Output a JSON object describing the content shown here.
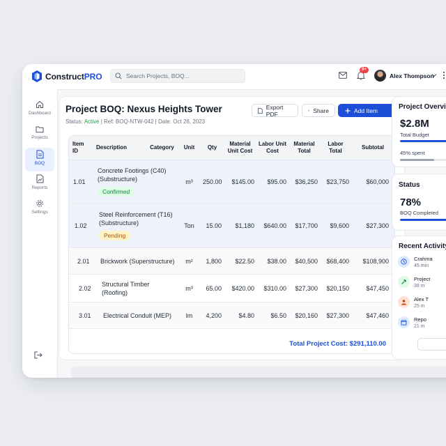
{
  "brand": {
    "name_main": "Construct",
    "name_accent": "PRO"
  },
  "search": {
    "placeholder": "Search Projects, BOQ..."
  },
  "header": {
    "notification_count": "9+",
    "user_name": "Alex Thompson"
  },
  "sidebar": {
    "items": [
      {
        "label": "Dashboard",
        "icon": "home-icon",
        "active": false
      },
      {
        "label": "Projects",
        "icon": "folder-icon",
        "active": false
      },
      {
        "label": "BOQ",
        "icon": "document-icon",
        "active": true
      },
      {
        "label": "Reports",
        "icon": "chart-file-icon",
        "active": false
      },
      {
        "label": "Settings",
        "icon": "gear-icon",
        "active": false
      }
    ]
  },
  "page": {
    "title": "Project BOQ: Nexus Heights Tower",
    "status_label": "Status:",
    "status_value": "Active",
    "ref": "| Ref: BOQ-NTW-042 | Date: Oct 26, 2023"
  },
  "actions": {
    "export_label": "Export PDF",
    "share_label": "Share",
    "add_label": "Add Item"
  },
  "table": {
    "headers": [
      "Item ID",
      "Description",
      "Category",
      "Unit",
      "Qty",
      "Material Unit Cost",
      "Labor Unit Cost",
      "Material Total",
      "Labor Total",
      "Subtotal"
    ],
    "rows": [
      {
        "id": "1.01",
        "description": "Concrete Footings (C40) (Substructure)",
        "status": "Confirmed",
        "unit": "m³",
        "qty": "250.00",
        "mat_unit": "$145.00",
        "lab_unit": "$95.00",
        "mat_total": "$36,250",
        "lab_total": "$23,750",
        "subtotal": "$60,000"
      },
      {
        "id": "1.02",
        "description": "Steel Reinforcement (T16) (Substructure)",
        "status": "Pending",
        "unit": "Ton",
        "qty": "15.00",
        "mat_unit": "$1,180",
        "lab_unit": "$640.00",
        "mat_total": "$17,700",
        "lab_total": "$9,600",
        "subtotal": "$27,300"
      },
      {
        "id": "2.01",
        "description": "Brickwork (Superstructure)",
        "status": "",
        "unit": "m²",
        "qty": "1,800",
        "mat_unit": "$22.50",
        "lab_unit": "$38.00",
        "mat_total": "$40,500",
        "lab_total": "$68,400",
        "subtotal": "$108,900"
      },
      {
        "id": "2.02",
        "description": "Structural Timber (Roofing)",
        "status": "",
        "unit": "m³",
        "qty": "65.00",
        "mat_unit": "$420.00",
        "lab_unit": "$310.00",
        "mat_total": "$27,300",
        "lab_total": "$20,150",
        "subtotal": "$47,450"
      },
      {
        "id": "3.01",
        "description": "Electrical Conduit (MEP)",
        "status": "",
        "unit": "lm",
        "qty": "4,200",
        "mat_unit": "$4.80",
        "lab_unit": "$6.50",
        "mat_total": "$20,160",
        "lab_total": "$27,300",
        "subtotal": "$47,460"
      }
    ],
    "total_label": "Total Project Cost: $291,110.00"
  },
  "overview": {
    "title": "Project Overview",
    "budget": "$2.8M",
    "budget_label": "Total Budget",
    "spent_label": "45% spent",
    "spent_fraction": 0.45
  },
  "status_card": {
    "title": "Status",
    "percent": "78%",
    "label": "BOQ Completed",
    "fraction": 0.78
  },
  "recent": {
    "title": "Recent Activity",
    "items": [
      {
        "title": "Crahma",
        "sub": "45 min",
        "icon": "clock-icon",
        "color": "#dbeafe"
      },
      {
        "title": "Project",
        "sub": "38 m",
        "icon": "hammer-icon",
        "color": "#dcfce7"
      },
      {
        "title": "Alex T",
        "sub": "25 m",
        "icon": "user-icon",
        "color": "#fde2d6"
      },
      {
        "title": "Repo",
        "sub": "21 m",
        "icon": "calendar-icon",
        "color": "#dbeafe"
      }
    ]
  },
  "colors": {
    "accent": "#1d4ed8",
    "active": "#16a34a",
    "confirmed_bg": "#dcfce7",
    "pending_bg": "#fef3c7"
  }
}
